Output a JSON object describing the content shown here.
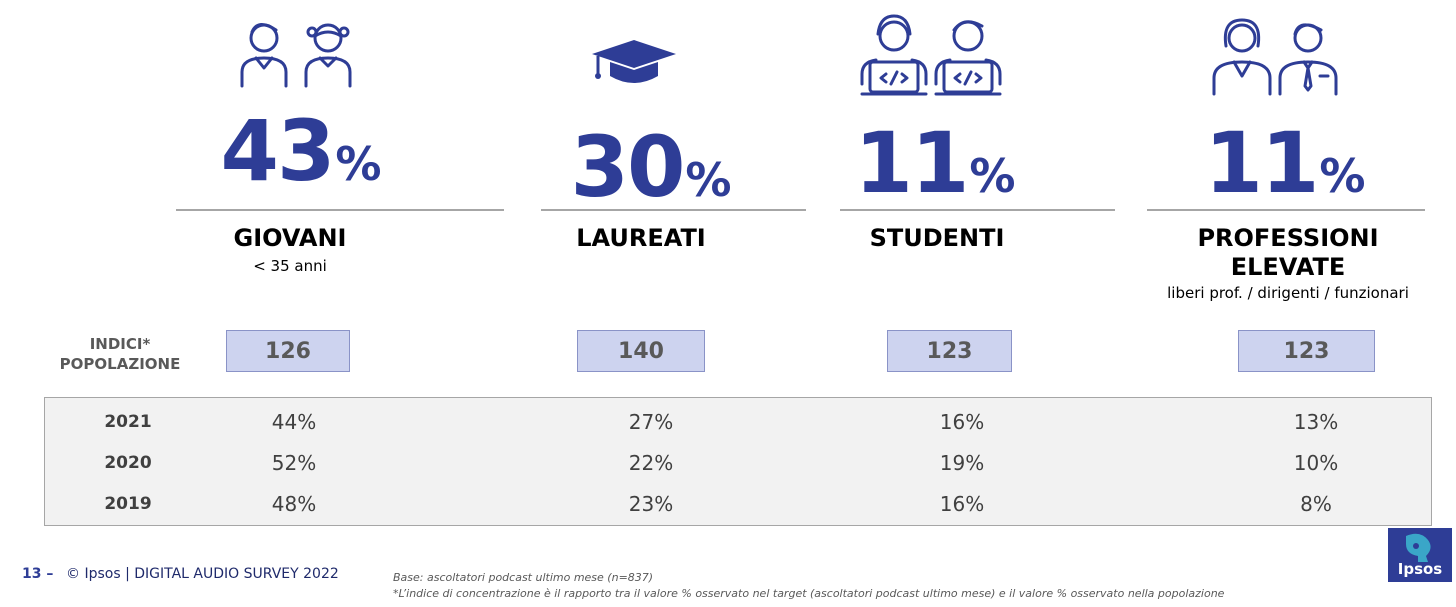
{
  "chart_data": {
    "type": "table",
    "categories": [
      {
        "name": "GIOVANI",
        "sub": "< 35 anni",
        "value": "43",
        "unit": "%",
        "index": "126"
      },
      {
        "name": "LAUREATI",
        "sub": "",
        "value": "30",
        "unit": "%",
        "index": "140"
      },
      {
        "name": "STUDENTI",
        "sub": "",
        "value": "11",
        "unit": "%",
        "index": "123"
      },
      {
        "name": "PROFESSIONI ELEVATE",
        "sub": "liberi prof. / dirigenti / funzionari",
        "value": "11",
        "unit": "%",
        "index": "123"
      }
    ],
    "index_label": "INDICI* POPOLAZIONE",
    "history": [
      {
        "year": "2021",
        "values": [
          "44%",
          "27%",
          "16%",
          "13%"
        ]
      },
      {
        "year": "2020",
        "values": [
          "52%",
          "22%",
          "19%",
          "10%"
        ]
      },
      {
        "year": "2019",
        "values": [
          "48%",
          "23%",
          "16%",
          "8%"
        ]
      }
    ]
  },
  "icons": [
    "young-people-icon",
    "graduation-cap-icon",
    "students-laptop-icon",
    "professionals-icon"
  ],
  "colors": {
    "accent": "#2e3d96",
    "index_box": "#cdd3ef",
    "table_bg": "#f2f2f2"
  },
  "footer": {
    "page": "13 –",
    "brand": "© Ipsos | DIGITAL AUDIO SURVEY 2022",
    "base": "Base: ascoltatori podcast ultimo mese (n=837)",
    "footnote": "*L’indice di concentrazione è il rapporto tra il valore % osservato nel target (ascoltatori podcast ultimo mese) e il valore % osservato nella popolazione",
    "logo": "Ipsos"
  }
}
